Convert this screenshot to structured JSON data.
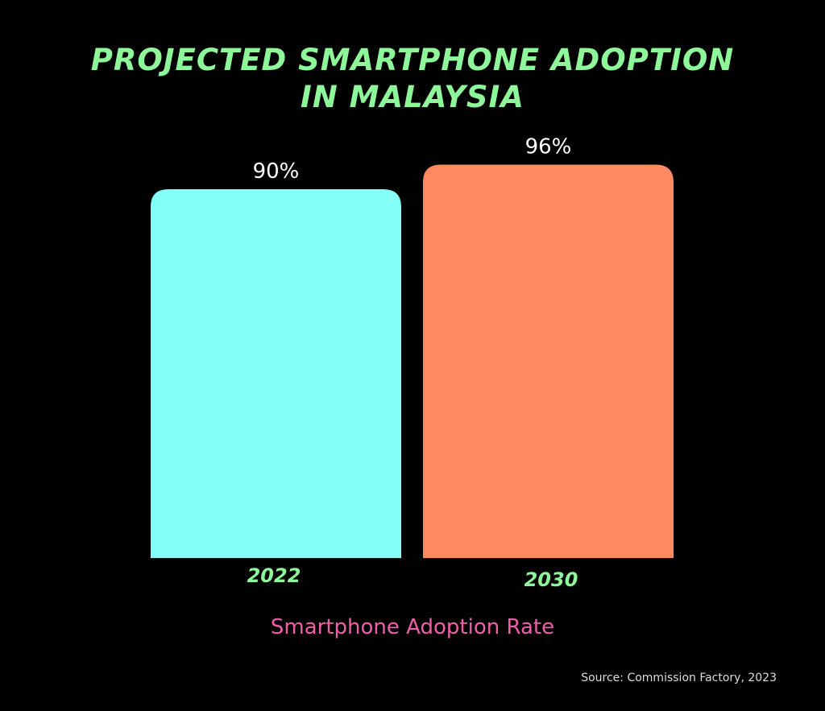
{
  "chart_data": {
    "type": "bar",
    "title_lines": [
      "PROJECTED SMARTPHONE ADOPTION",
      "IN MALAYSIA"
    ],
    "categories": [
      "2022",
      "2030"
    ],
    "values": [
      90,
      96
    ],
    "data_labels": [
      "90%",
      "96%"
    ],
    "xlabel": "Smartphone Adoption Rate",
    "ylabel": "",
    "ylim": [
      0,
      100
    ],
    "grid": false,
    "colors": [
      "#84fff7",
      "#ff8a5f"
    ],
    "title_color": "#8ef79a",
    "category_label_color": "#8ef79a",
    "xlabel_color": "#ee5fa8",
    "source": "Source: Commission Factory, 2023"
  }
}
